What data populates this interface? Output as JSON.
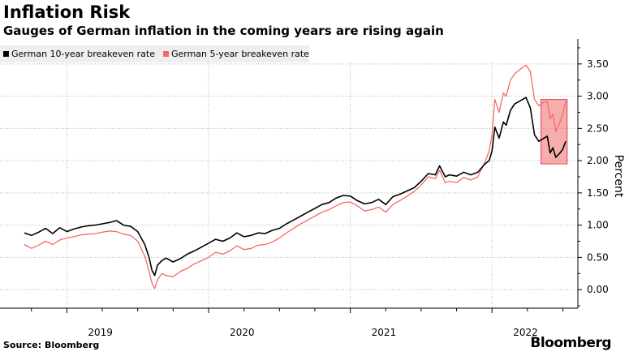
{
  "header": {
    "title": "Inflation Risk",
    "subtitle": "Gauges of German inflation in the coming years are rising again"
  },
  "legend": {
    "items": [
      {
        "label": "German 10-year breakeven rate",
        "color": "#000000"
      },
      {
        "label": "German 5-year breakeven rate",
        "color": "#f36a6a"
      }
    ]
  },
  "footer": {
    "source": "Source: Bloomberg",
    "brand": "Bloomberg"
  },
  "chart_data": {
    "type": "line",
    "title": "Inflation Risk",
    "subtitle": "Gauges of German inflation in the coming years are rising again",
    "xlabel": "",
    "ylabel": "Percent",
    "x_tick_labels": [
      "2019",
      "2020",
      "2021",
      "2022"
    ],
    "y_ticks": [
      0.0,
      0.5,
      1.0,
      1.5,
      2.0,
      2.5,
      3.0,
      3.5
    ],
    "y_tick_labels": [
      "0.00",
      "0.50",
      "1.00",
      "1.50",
      "2.00",
      "2.50",
      "3.00",
      "3.50"
    ],
    "ylim": [
      -0.3,
      3.85
    ],
    "xlim": [
      2018.7,
      2022.6
    ],
    "highlight": {
      "x_range": [
        2022.345,
        2022.53
      ],
      "y_range": [
        1.95,
        2.95
      ],
      "color": "#f36a6a"
    },
    "series": [
      {
        "name": "German 10-year breakeven rate",
        "color": "#000000",
        "points": [
          [
            2018.7,
            0.88
          ],
          [
            2018.75,
            0.84
          ],
          [
            2018.8,
            0.89
          ],
          [
            2018.85,
            0.95
          ],
          [
            2018.9,
            0.87
          ],
          [
            2018.95,
            0.96
          ],
          [
            2019.0,
            0.9
          ],
          [
            2019.05,
            0.94
          ],
          [
            2019.1,
            0.97
          ],
          [
            2019.15,
            0.99
          ],
          [
            2019.2,
            1.0
          ],
          [
            2019.25,
            1.02
          ],
          [
            2019.3,
            1.04
          ],
          [
            2019.35,
            1.07
          ],
          [
            2019.4,
            1.0
          ],
          [
            2019.45,
            0.98
          ],
          [
            2019.5,
            0.9
          ],
          [
            2019.55,
            0.7
          ],
          [
            2019.58,
            0.5
          ],
          [
            2019.6,
            0.3
          ],
          [
            2019.62,
            0.22
          ],
          [
            2019.64,
            0.38
          ],
          [
            2019.67,
            0.45
          ],
          [
            2019.7,
            0.49
          ],
          [
            2019.75,
            0.43
          ],
          [
            2019.8,
            0.48
          ],
          [
            2019.85,
            0.55
          ],
          [
            2019.9,
            0.6
          ],
          [
            2019.95,
            0.66
          ],
          [
            2020.0,
            0.72
          ],
          [
            2020.05,
            0.78
          ],
          [
            2020.1,
            0.75
          ],
          [
            2020.15,
            0.8
          ],
          [
            2020.2,
            0.88
          ],
          [
            2020.25,
            0.82
          ],
          [
            2020.3,
            0.84
          ],
          [
            2020.35,
            0.88
          ],
          [
            2020.4,
            0.87
          ],
          [
            2020.45,
            0.92
          ],
          [
            2020.5,
            0.95
          ],
          [
            2020.55,
            1.02
          ],
          [
            2020.6,
            1.08
          ],
          [
            2020.65,
            1.14
          ],
          [
            2020.7,
            1.2
          ],
          [
            2020.75,
            1.26
          ],
          [
            2020.8,
            1.32
          ],
          [
            2020.85,
            1.35
          ],
          [
            2020.9,
            1.42
          ],
          [
            2020.95,
            1.46
          ],
          [
            2021.0,
            1.45
          ],
          [
            2021.05,
            1.38
          ],
          [
            2021.1,
            1.33
          ],
          [
            2021.15,
            1.35
          ],
          [
            2021.2,
            1.4
          ],
          [
            2021.25,
            1.32
          ],
          [
            2021.3,
            1.44
          ],
          [
            2021.35,
            1.48
          ],
          [
            2021.4,
            1.53
          ],
          [
            2021.45,
            1.58
          ],
          [
            2021.5,
            1.68
          ],
          [
            2021.55,
            1.8
          ],
          [
            2021.6,
            1.78
          ],
          [
            2021.63,
            1.92
          ],
          [
            2021.67,
            1.75
          ],
          [
            2021.7,
            1.78
          ],
          [
            2021.75,
            1.76
          ],
          [
            2021.8,
            1.82
          ],
          [
            2021.85,
            1.78
          ],
          [
            2021.9,
            1.82
          ],
          [
            2021.95,
            1.95
          ],
          [
            2021.98,
            2.0
          ],
          [
            2022.0,
            2.15
          ],
          [
            2022.02,
            2.52
          ],
          [
            2022.05,
            2.35
          ],
          [
            2022.08,
            2.6
          ],
          [
            2022.1,
            2.55
          ],
          [
            2022.13,
            2.78
          ],
          [
            2022.16,
            2.88
          ],
          [
            2022.2,
            2.93
          ],
          [
            2022.24,
            2.98
          ],
          [
            2022.27,
            2.82
          ],
          [
            2022.3,
            2.4
          ],
          [
            2022.33,
            2.3
          ],
          [
            2022.36,
            2.34
          ],
          [
            2022.39,
            2.38
          ],
          [
            2022.41,
            2.12
          ],
          [
            2022.43,
            2.2
          ],
          [
            2022.45,
            2.05
          ],
          [
            2022.48,
            2.12
          ],
          [
            2022.5,
            2.18
          ],
          [
            2022.52,
            2.3
          ]
        ]
      },
      {
        "name": "German 5-year breakeven rate",
        "color": "#f36a6a",
        "points": [
          [
            2018.7,
            0.7
          ],
          [
            2018.75,
            0.64
          ],
          [
            2018.8,
            0.69
          ],
          [
            2018.85,
            0.75
          ],
          [
            2018.9,
            0.7
          ],
          [
            2018.95,
            0.77
          ],
          [
            2019.0,
            0.8
          ],
          [
            2019.05,
            0.82
          ],
          [
            2019.1,
            0.85
          ],
          [
            2019.15,
            0.86
          ],
          [
            2019.2,
            0.87
          ],
          [
            2019.25,
            0.89
          ],
          [
            2019.3,
            0.91
          ],
          [
            2019.35,
            0.9
          ],
          [
            2019.4,
            0.86
          ],
          [
            2019.45,
            0.84
          ],
          [
            2019.5,
            0.75
          ],
          [
            2019.55,
            0.52
          ],
          [
            2019.58,
            0.28
          ],
          [
            2019.6,
            0.1
          ],
          [
            2019.62,
            0.02
          ],
          [
            2019.64,
            0.15
          ],
          [
            2019.67,
            0.25
          ],
          [
            2019.7,
            0.22
          ],
          [
            2019.75,
            0.2
          ],
          [
            2019.8,
            0.28
          ],
          [
            2019.85,
            0.33
          ],
          [
            2019.9,
            0.4
          ],
          [
            2019.95,
            0.45
          ],
          [
            2020.0,
            0.5
          ],
          [
            2020.05,
            0.58
          ],
          [
            2020.1,
            0.55
          ],
          [
            2020.15,
            0.6
          ],
          [
            2020.2,
            0.68
          ],
          [
            2020.25,
            0.62
          ],
          [
            2020.3,
            0.64
          ],
          [
            2020.35,
            0.69
          ],
          [
            2020.4,
            0.7
          ],
          [
            2020.45,
            0.74
          ],
          [
            2020.5,
            0.8
          ],
          [
            2020.55,
            0.88
          ],
          [
            2020.6,
            0.95
          ],
          [
            2020.65,
            1.02
          ],
          [
            2020.7,
            1.08
          ],
          [
            2020.75,
            1.14
          ],
          [
            2020.8,
            1.2
          ],
          [
            2020.85,
            1.24
          ],
          [
            2020.9,
            1.3
          ],
          [
            2020.95,
            1.35
          ],
          [
            2021.0,
            1.36
          ],
          [
            2021.05,
            1.3
          ],
          [
            2021.1,
            1.22
          ],
          [
            2021.15,
            1.24
          ],
          [
            2021.2,
            1.28
          ],
          [
            2021.25,
            1.2
          ],
          [
            2021.3,
            1.32
          ],
          [
            2021.35,
            1.38
          ],
          [
            2021.4,
            1.45
          ],
          [
            2021.45,
            1.52
          ],
          [
            2021.5,
            1.62
          ],
          [
            2021.55,
            1.75
          ],
          [
            2021.6,
            1.72
          ],
          [
            2021.63,
            1.85
          ],
          [
            2021.67,
            1.66
          ],
          [
            2021.7,
            1.68
          ],
          [
            2021.75,
            1.66
          ],
          [
            2021.8,
            1.74
          ],
          [
            2021.85,
            1.7
          ],
          [
            2021.9,
            1.75
          ],
          [
            2021.95,
            1.98
          ],
          [
            2021.98,
            2.15
          ],
          [
            2022.0,
            2.4
          ],
          [
            2022.02,
            2.95
          ],
          [
            2022.05,
            2.75
          ],
          [
            2022.08,
            3.05
          ],
          [
            2022.1,
            3.0
          ],
          [
            2022.13,
            3.25
          ],
          [
            2022.16,
            3.35
          ],
          [
            2022.2,
            3.42
          ],
          [
            2022.24,
            3.48
          ],
          [
            2022.27,
            3.38
          ],
          [
            2022.3,
            2.95
          ],
          [
            2022.33,
            2.85
          ],
          [
            2022.36,
            2.9
          ],
          [
            2022.39,
            2.92
          ],
          [
            2022.41,
            2.65
          ],
          [
            2022.43,
            2.72
          ],
          [
            2022.45,
            2.45
          ],
          [
            2022.48,
            2.6
          ],
          [
            2022.5,
            2.72
          ],
          [
            2022.52,
            2.92
          ]
        ]
      }
    ]
  }
}
